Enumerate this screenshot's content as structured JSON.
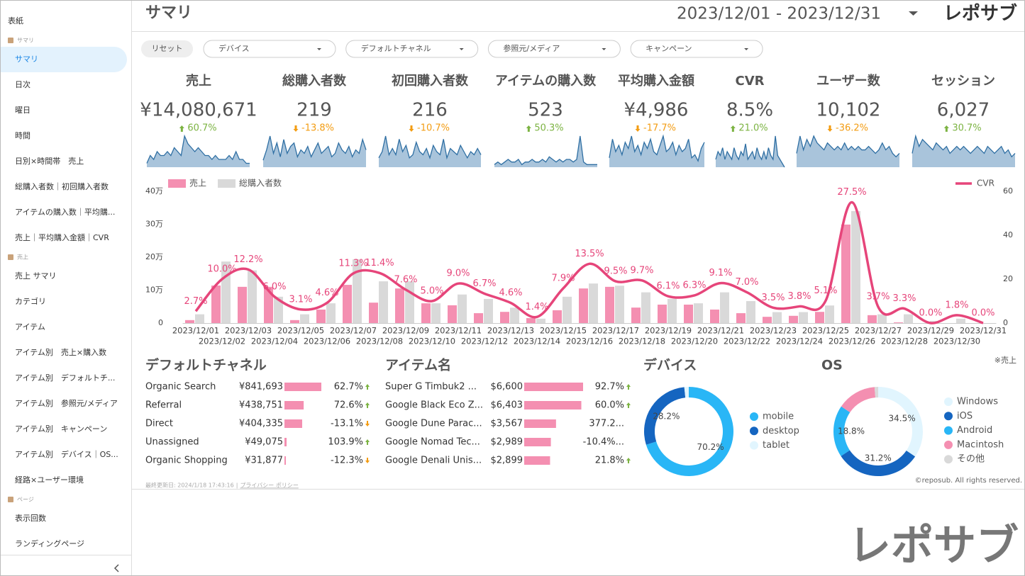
{
  "sidebar": {
    "cover": "表紙",
    "active": [
      0,
      0
    ],
    "groups": [
      {
        "title": "サマリ",
        "items": [
          "サマリ",
          "日次",
          "曜日",
          "時間",
          "日別×時間帯　売上",
          "総購入者数｜初回購入者数",
          "アイテムの購入数｜平均購...",
          "売上｜平均購入金額｜CVR"
        ]
      },
      {
        "title": "売上",
        "items": [
          "売上 サマリ",
          "カテゴリ",
          "アイテム",
          "アイテム別　売上×購入数",
          "アイテム別　デフォルトチ...",
          "アイテム別　参照元/メディア",
          "アイテム別　キャンペーン",
          "アイテム別　デバイス｜OS...",
          "経路×ユーザー環境"
        ]
      },
      {
        "title": "ページ",
        "items": [
          "表示回数",
          "ランディングページ"
        ]
      }
    ]
  },
  "header": {
    "title": "サマリ",
    "date_range": "2023/12/01 - 2023/12/31",
    "logo": "レポサブ"
  },
  "filters": {
    "reset": "リセット",
    "dropdowns": [
      "デバイス",
      "デフォルトチャネル",
      "参照元/メディア",
      "キャンペーン"
    ]
  },
  "kpis": [
    {
      "title": "売上",
      "value": "¥14,080,671",
      "change": "60.7%",
      "spark": [
        1,
        3,
        2,
        4,
        3,
        3,
        4,
        3,
        5,
        4,
        3,
        8,
        6,
        5,
        4,
        5,
        4,
        3,
        3,
        2,
        3,
        2,
        2,
        2,
        3,
        2,
        4,
        2,
        2,
        1,
        1
      ]
    },
    {
      "title": "総購入者数",
      "value": "219",
      "change": "-13.8%",
      "spark": [
        2,
        5,
        9,
        4,
        7,
        3,
        8,
        4,
        6,
        7,
        3,
        5,
        4,
        6,
        3,
        5,
        7,
        4,
        5,
        6,
        3,
        4,
        7,
        5,
        4,
        6,
        3,
        5,
        4,
        8,
        5
      ]
    },
    {
      "title": "初回購入者数",
      "value": "216",
      "change": "-10.7%",
      "spark": [
        3,
        5,
        10,
        4,
        6,
        4,
        9,
        5,
        7,
        3,
        4,
        8,
        5,
        4,
        6,
        3,
        7,
        5,
        4,
        9,
        3,
        6,
        5,
        4,
        7,
        5,
        3,
        5,
        4,
        6,
        4
      ]
    },
    {
      "title": "アイテムの購入数",
      "value": "523",
      "change": "50.3%",
      "spark": [
        1,
        2,
        1,
        2,
        3,
        2,
        2,
        3,
        1,
        2,
        2,
        3,
        2,
        2,
        3,
        2,
        4,
        3,
        2,
        3,
        2,
        3,
        3,
        2,
        3,
        12,
        2,
        1,
        1,
        1,
        1
      ]
    },
    {
      "title": "平均購入金額",
      "value": "¥4,986",
      "change": "-17.7%",
      "spark": [
        3,
        9,
        5,
        7,
        4,
        8,
        6,
        10,
        5,
        7,
        4,
        8,
        6,
        9,
        5,
        4,
        7,
        10,
        5,
        6,
        8,
        4,
        7,
        5,
        6,
        9,
        3,
        4,
        2,
        6,
        8
      ]
    },
    {
      "title": "CVR",
      "value": "8.5%",
      "change": "21.0%",
      "spark": [
        2,
        4,
        3,
        5,
        2,
        4,
        3,
        2,
        5,
        3,
        2,
        4,
        3,
        6,
        2,
        3,
        4,
        2,
        5,
        3,
        2,
        4,
        2,
        5,
        3,
        2,
        8,
        3,
        2,
        1,
        0
      ]
    },
    {
      "title": "ユーザー数",
      "value": "10,102",
      "change": "-36.2%",
      "spark": [
        4,
        9,
        5,
        8,
        6,
        9,
        7,
        6,
        5,
        7,
        6,
        5,
        6,
        5,
        7,
        5,
        6,
        5,
        6,
        5,
        5,
        6,
        5,
        4,
        5,
        7,
        5,
        6,
        4,
        3,
        4
      ]
    },
    {
      "title": "セッション",
      "value": "6,027",
      "change": "30.7%",
      "spark": [
        4,
        9,
        6,
        8,
        7,
        6,
        5,
        7,
        6,
        5,
        6,
        4,
        5,
        6,
        5,
        6,
        5,
        4,
        5,
        6,
        5,
        4,
        6,
        5,
        4,
        5,
        6,
        4,
        5,
        3,
        4
      ]
    }
  ],
  "chart_data": [
    {
      "type": "combo",
      "categories": [
        "2023/12/01",
        "2023/12/02",
        "2023/12/03",
        "2023/12/04",
        "2023/12/05",
        "2023/12/06",
        "2023/12/07",
        "2023/12/08",
        "2023/12/09",
        "2023/12/10",
        "2023/12/11",
        "2023/12/12",
        "2023/12/13",
        "2023/12/14",
        "2023/12/15",
        "2023/12/16",
        "2023/12/17",
        "2023/12/18",
        "2023/12/19",
        "2023/12/20",
        "2023/12/21",
        "2023/12/22",
        "2023/12/23",
        "2023/12/24",
        "2023/12/25",
        "2023/12/26",
        "2023/12/27",
        "2023/12/28",
        "2023/12/29",
        "2023/12/30",
        "2023/12/31"
      ],
      "series": [
        {
          "name": "売上",
          "type": "bar",
          "color": "#f48fb1",
          "values": [
            9000,
            114000,
            110000,
            110000,
            9000,
            41000,
            116000,
            62000,
            105000,
            60000,
            54000,
            30000,
            34000,
            15000,
            39000,
            105000,
            110000,
            47000,
            56000,
            56000,
            41000,
            30000,
            19000,
            22000,
            34000,
            299000,
            24000,
            2000,
            0,
            0,
            0
          ]
        },
        {
          "name": "総購入者数",
          "type": "bar",
          "axis": "y2",
          "color": "#d9d9d9",
          "values": [
            4,
            28,
            24,
            12,
            4,
            9,
            29,
            19,
            19,
            9,
            13,
            11,
            7,
            2,
            12,
            18,
            17,
            14,
            11,
            9,
            14,
            10,
            5,
            5,
            8,
            51,
            4,
            4,
            1,
            2,
            0
          ]
        },
        {
          "name": "CVR",
          "type": "line",
          "axis": "y3",
          "color": "#e6457a",
          "values": [
            2.7,
            10.0,
            12.2,
            6.0,
            3.1,
            4.6,
            11.3,
            11.4,
            7.6,
            5.0,
            9.0,
            6.7,
            4.6,
            1.4,
            7.9,
            13.5,
            9.5,
            9.7,
            6.1,
            6.3,
            9.1,
            7.0,
            3.5,
            3.8,
            5.1,
            27.5,
            3.7,
            3.3,
            0.0,
            1.8,
            0.0
          ],
          "value_labels": [
            "2.7%",
            "10.0%",
            "12.2%",
            "6.0%",
            "3.1%",
            "4.6%",
            "11.3%",
            "11.4%",
            "7.6%",
            "5.0%",
            "9.0%",
            "6.7%",
            "4.6%",
            "1.4%",
            "7.9%",
            "13.5%",
            "9.5%",
            "9.7%",
            "6.1%",
            "6.3%",
            "9.1%",
            "7.0%",
            "3.5%",
            "3.8%",
            "5.1%",
            "27.5%",
            "3.7%",
            "3.3%",
            "0.0%",
            "1.8%",
            "0.0%"
          ]
        }
      ],
      "ylim": [
        0,
        400000
      ],
      "yticks": [
        0,
        {
          "value": 100000,
          "label": "10万"
        },
        {
          "value": 200000,
          "label": "20万"
        },
        {
          "value": 300000,
          "label": "30万"
        },
        {
          "value": 400000,
          "label": "40万"
        }
      ],
      "y2lim": [
        0,
        60
      ],
      "y2ticks": [
        0,
        20,
        40,
        60
      ],
      "y3lim": [
        0,
        30
      ],
      "grid": false
    },
    {
      "type": "pie",
      "donut": true,
      "title": "デバイス",
      "categories": [
        "mobile",
        "desktop",
        "tablet"
      ],
      "values": [
        70.2,
        28.2,
        1.6
      ],
      "value_labels": [
        "70.2%",
        "28.2%",
        null
      ],
      "colors": [
        "#29b6f6",
        "#1565c0",
        "#e1f5fe"
      ]
    },
    {
      "type": "pie",
      "donut": true,
      "title": "OS",
      "categories": [
        "Windows",
        "iOS",
        "Android",
        "Macintosh",
        "その他"
      ],
      "values": [
        34.5,
        31.2,
        18.8,
        14.2,
        1.3
      ],
      "value_labels": [
        "34.5%",
        "31.2%",
        "18.8%",
        null,
        null
      ],
      "colors": [
        "#e1f5fe",
        "#1565c0",
        "#29b6f6",
        "#f48fb1",
        "#d9d9d9"
      ]
    }
  ],
  "channels": {
    "title": "デフォルトチャネル",
    "rows": [
      {
        "name": "Organic Search",
        "revenue": {
          "value": 841693,
          "label": "¥841,693"
        },
        "change": "62.7%"
      },
      {
        "name": "Referral",
        "revenue": {
          "value": 438751,
          "label": "¥438,751"
        },
        "change": "72.6%"
      },
      {
        "name": "Direct",
        "revenue": {
          "value": 404335,
          "label": "¥404,335"
        },
        "change": "-13.1%"
      },
      {
        "name": "Unassigned",
        "revenue": {
          "value": 49075,
          "label": "¥49,075"
        },
        "change": "103.9%"
      },
      {
        "name": "Organic Shopping",
        "revenue": {
          "value": 31877,
          "label": "¥31,877"
        },
        "change": "-12.3%"
      }
    ]
  },
  "items": {
    "title": "アイテム名",
    "rows": [
      {
        "name": "Super G Timbuk2 ...",
        "revenue": {
          "value": 6600,
          "label": "$6,600"
        },
        "change": "92.7%"
      },
      {
        "name": "Google Black Eco Z...",
        "revenue": {
          "value": 6403,
          "label": "$6,403"
        },
        "change": "60.0%"
      },
      {
        "name": "Google Dune Parac...",
        "revenue": {
          "value": 3567,
          "label": "$3,567"
        },
        "change": "377.2..."
      },
      {
        "name": "Google Nomad Tec...",
        "revenue": {
          "value": 2989,
          "label": "$2,989"
        },
        "change": "-10.4%..."
      },
      {
        "name": "Google Denali Unis...",
        "revenue": {
          "value": 2899,
          "label": "$2,899"
        },
        "change": "21.8%"
      }
    ]
  },
  "note": "※売上",
  "footer": {
    "updated": "最終更新日: 2024/1/18 17:43:16",
    "separator": "|",
    "privacy": "プライバシー ポリシー",
    "copyright": "©reposub. All rights reserved."
  },
  "watermark": "レポサブ"
}
